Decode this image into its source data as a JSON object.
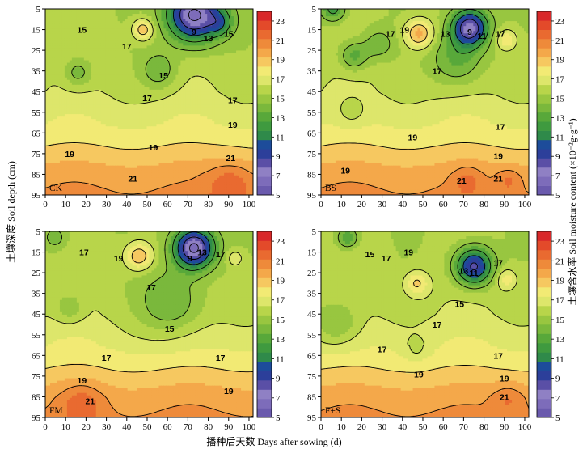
{
  "chart_data": {
    "type": "heatmap",
    "xlabel": "播种后天数 Days after sowing (d)",
    "ylabel": "土壤深度 Soil depth (cm)",
    "colorbar_label": "土壤含水率 Soil moisture content (×10⁻²g·g⁻¹)",
    "x_ticks": [
      0,
      10,
      20,
      30,
      40,
      50,
      60,
      70,
      80,
      90,
      100
    ],
    "y_ticks": [
      5,
      15,
      25,
      35,
      45,
      55,
      65,
      75,
      85,
      95
    ],
    "xlim": [
      0,
      102
    ],
    "ylim": [
      5,
      95
    ],
    "levels": [
      5,
      6,
      7,
      8,
      9,
      10,
      11,
      12,
      13,
      14,
      15,
      16,
      17,
      18,
      19,
      20,
      21,
      22,
      23,
      24
    ],
    "colorbar_ticks": [
      5,
      7,
      9,
      11,
      13,
      15,
      17,
      19,
      21,
      23
    ],
    "colors": [
      "#6a5aad",
      "#7d6cba",
      "#8f80c4",
      "#5a4fa6",
      "#2c3f9a",
      "#1d4c9a",
      "#2f8a4a",
      "#3f9a3f",
      "#58a83a",
      "#7ab83c",
      "#98c640",
      "#b8d54a",
      "#dde66b",
      "#f2ea74",
      "#f6c860",
      "#f4a84a",
      "#ee8a3a",
      "#e96a30",
      "#e34a2a",
      "#d8282a"
    ],
    "panels": [
      {
        "label": "CK",
        "blobs": [
          {
            "x": 73,
            "y": 8,
            "r": 13,
            "amp": -10
          },
          {
            "x": 86,
            "y": 12,
            "r": 6,
            "amp": -3
          },
          {
            "x": 48,
            "y": 15,
            "r": 5,
            "amp": 4
          },
          {
            "x": 16,
            "y": 36,
            "r": 7,
            "amp": -2.5
          },
          {
            "x": 56,
            "y": 35,
            "r": 9,
            "amp": -2.5
          },
          {
            "x": 91,
            "y": 90,
            "r": 11,
            "amp": 2
          }
        ],
        "labels": [
          {
            "x": 18,
            "y": 15,
            "v": 15
          },
          {
            "x": 40,
            "y": 23,
            "v": 17
          },
          {
            "x": 58,
            "y": 37,
            "v": 15
          },
          {
            "x": 50,
            "y": 48,
            "v": 17
          },
          {
            "x": 92,
            "y": 49,
            "v": 17
          },
          {
            "x": 73,
            "y": 16,
            "v": 9
          },
          {
            "x": 80,
            "y": 19,
            "v": 13
          },
          {
            "x": 90,
            "y": 17,
            "v": 15
          },
          {
            "x": 92,
            "y": 61,
            "v": 19
          },
          {
            "x": 12,
            "y": 75,
            "v": 19
          },
          {
            "x": 53,
            "y": 72,
            "v": 19
          },
          {
            "x": 91,
            "y": 77,
            "v": 21
          },
          {
            "x": 43,
            "y": 87,
            "v": 21
          }
        ]
      },
      {
        "label": "BS",
        "blobs": [
          {
            "x": 6,
            "y": 5,
            "r": 6,
            "amp": -4
          },
          {
            "x": 16,
            "y": 28,
            "r": 7,
            "amp": -3
          },
          {
            "x": 28,
            "y": 22,
            "r": 8,
            "amp": -2
          },
          {
            "x": 48,
            "y": 17,
            "r": 7,
            "amp": 4.5
          },
          {
            "x": 73,
            "y": 14,
            "r": 9,
            "amp": -9
          },
          {
            "x": 91,
            "y": 20,
            "r": 5,
            "amp": 3
          },
          {
            "x": 67,
            "y": 30,
            "r": 13,
            "amp": -3
          },
          {
            "x": 15,
            "y": 55,
            "r": 7,
            "amp": -1.5
          },
          {
            "x": 72,
            "y": 88,
            "r": 7,
            "amp": 1.5
          },
          {
            "x": 92,
            "y": 88,
            "r": 6,
            "amp": 1.5
          }
        ],
        "labels": [
          {
            "x": 34,
            "y": 17,
            "v": 17
          },
          {
            "x": 41,
            "y": 15,
            "v": 19
          },
          {
            "x": 61,
            "y": 17,
            "v": 13
          },
          {
            "x": 73,
            "y": 16,
            "v": 9
          },
          {
            "x": 79,
            "y": 18,
            "v": 11
          },
          {
            "x": 57,
            "y": 35,
            "v": 17
          },
          {
            "x": 88,
            "y": 17,
            "v": 17
          },
          {
            "x": 45,
            "y": 67,
            "v": 19
          },
          {
            "x": 88,
            "y": 62,
            "v": 17
          },
          {
            "x": 87,
            "y": 76,
            "v": 19
          },
          {
            "x": 12,
            "y": 83,
            "v": 19
          },
          {
            "x": 69,
            "y": 88,
            "v": 21
          },
          {
            "x": 87,
            "y": 87,
            "v": 21
          }
        ]
      },
      {
        "label": "FM",
        "blobs": [
          {
            "x": 73,
            "y": 13,
            "r": 10,
            "amp": -10
          },
          {
            "x": 93,
            "y": 18,
            "r": 4,
            "amp": 2
          },
          {
            "x": 46,
            "y": 17,
            "r": 7,
            "amp": 4
          },
          {
            "x": 62,
            "y": 40,
            "r": 16,
            "amp": -3
          },
          {
            "x": 12,
            "y": 42,
            "r": 7,
            "amp": -2
          },
          {
            "x": 5,
            "y": 8,
            "r": 6,
            "amp": -2
          },
          {
            "x": 18,
            "y": 88,
            "r": 10,
            "amp": 1.8
          }
        ],
        "labels": [
          {
            "x": 19,
            "y": 15,
            "v": 17
          },
          {
            "x": 36,
            "y": 18,
            "v": 19
          },
          {
            "x": 52,
            "y": 32,
            "v": 17
          },
          {
            "x": 71,
            "y": 18,
            "v": 9
          },
          {
            "x": 77,
            "y": 15,
            "v": 13
          },
          {
            "x": 86,
            "y": 16,
            "v": 17
          },
          {
            "x": 61,
            "y": 52,
            "v": 15
          },
          {
            "x": 30,
            "y": 66,
            "v": 17
          },
          {
            "x": 86,
            "y": 66,
            "v": 17
          },
          {
            "x": 18,
            "y": 77,
            "v": 19
          },
          {
            "x": 90,
            "y": 82,
            "v": 19
          },
          {
            "x": 22,
            "y": 87,
            "v": 21
          }
        ]
      },
      {
        "label": "F+S",
        "blobs": [
          {
            "x": 13,
            "y": 8,
            "r": 5,
            "amp": -3.5
          },
          {
            "x": 8,
            "y": 50,
            "r": 11,
            "amp": -2.5
          },
          {
            "x": 47,
            "y": 30,
            "r": 6,
            "amp": 3
          },
          {
            "x": 75,
            "y": 22,
            "r": 9,
            "amp": -8
          },
          {
            "x": 91,
            "y": 28,
            "r": 5,
            "amp": 2.5
          },
          {
            "x": 92,
            "y": 86,
            "r": 8,
            "amp": 1.5
          },
          {
            "x": 47,
            "y": 62,
            "r": 6,
            "amp": -1.2
          }
        ],
        "labels": [
          {
            "x": 24,
            "y": 16,
            "v": 15
          },
          {
            "x": 32,
            "y": 18,
            "v": 17
          },
          {
            "x": 43,
            "y": 15,
            "v": 19
          },
          {
            "x": 70,
            "y": 24,
            "v": 13
          },
          {
            "x": 75,
            "y": 25,
            "v": 11
          },
          {
            "x": 68,
            "y": 40,
            "v": 15
          },
          {
            "x": 57,
            "y": 50,
            "v": 17
          },
          {
            "x": 87,
            "y": 20,
            "v": 17
          },
          {
            "x": 30,
            "y": 62,
            "v": 17
          },
          {
            "x": 87,
            "y": 65,
            "v": 17
          },
          {
            "x": 48,
            "y": 74,
            "v": 19
          },
          {
            "x": 90,
            "y": 76,
            "v": 19
          },
          {
            "x": 90,
            "y": 85,
            "v": 21
          }
        ]
      }
    ]
  }
}
